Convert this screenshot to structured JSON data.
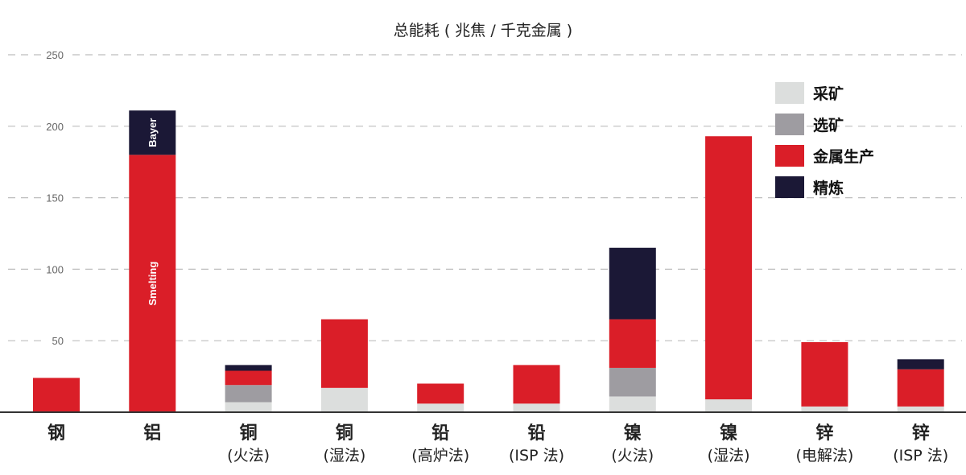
{
  "chart_data": {
    "type": "bar",
    "stacked": true,
    "title": "总能耗 ( 兆焦 / 千克金属 )",
    "ylim": [
      0,
      250
    ],
    "yticks": [
      50,
      100,
      150,
      200,
      250
    ],
    "grid": true,
    "legend_position": "top-right",
    "categories": [
      {
        "line1": "钢",
        "line2": ""
      },
      {
        "line1": "铝",
        "line2": ""
      },
      {
        "line1": "铜",
        "line2": "(火法)"
      },
      {
        "line1": "铜",
        "line2": "(湿法)"
      },
      {
        "line1": "铅",
        "line2": "(高炉法)"
      },
      {
        "line1": "铅",
        "line2": "(ISP 法)"
      },
      {
        "line1": "镍",
        "line2": "(火法)"
      },
      {
        "line1": "镍",
        "line2": "(湿法)"
      },
      {
        "line1": "锌",
        "line2": "(电解法)"
      },
      {
        "line1": "锌",
        "line2": "(ISP 法)"
      }
    ],
    "series": [
      {
        "name": "采矿",
        "color": "#dcdedd",
        "values": [
          0,
          0,
          7,
          17,
          6,
          6,
          11,
          9,
          4,
          4
        ]
      },
      {
        "name": "选矿",
        "color": "#9e9ca1",
        "values": [
          0,
          0,
          12,
          0,
          0,
          0,
          20,
          0,
          0,
          0
        ]
      },
      {
        "name": "金属生产",
        "color": "#da1e28",
        "values": [
          24,
          180,
          10,
          48,
          14,
          27,
          34,
          184,
          45,
          26
        ]
      },
      {
        "name": "精炼",
        "color": "#1b1836",
        "values": [
          0,
          31,
          4,
          0,
          0,
          0,
          50,
          0,
          0,
          7
        ]
      }
    ],
    "segment_labels": [
      {
        "category_index": 1,
        "series_index": 3,
        "text": "Bayer"
      },
      {
        "category_index": 1,
        "series_index": 2,
        "text": "Smelting"
      }
    ]
  }
}
